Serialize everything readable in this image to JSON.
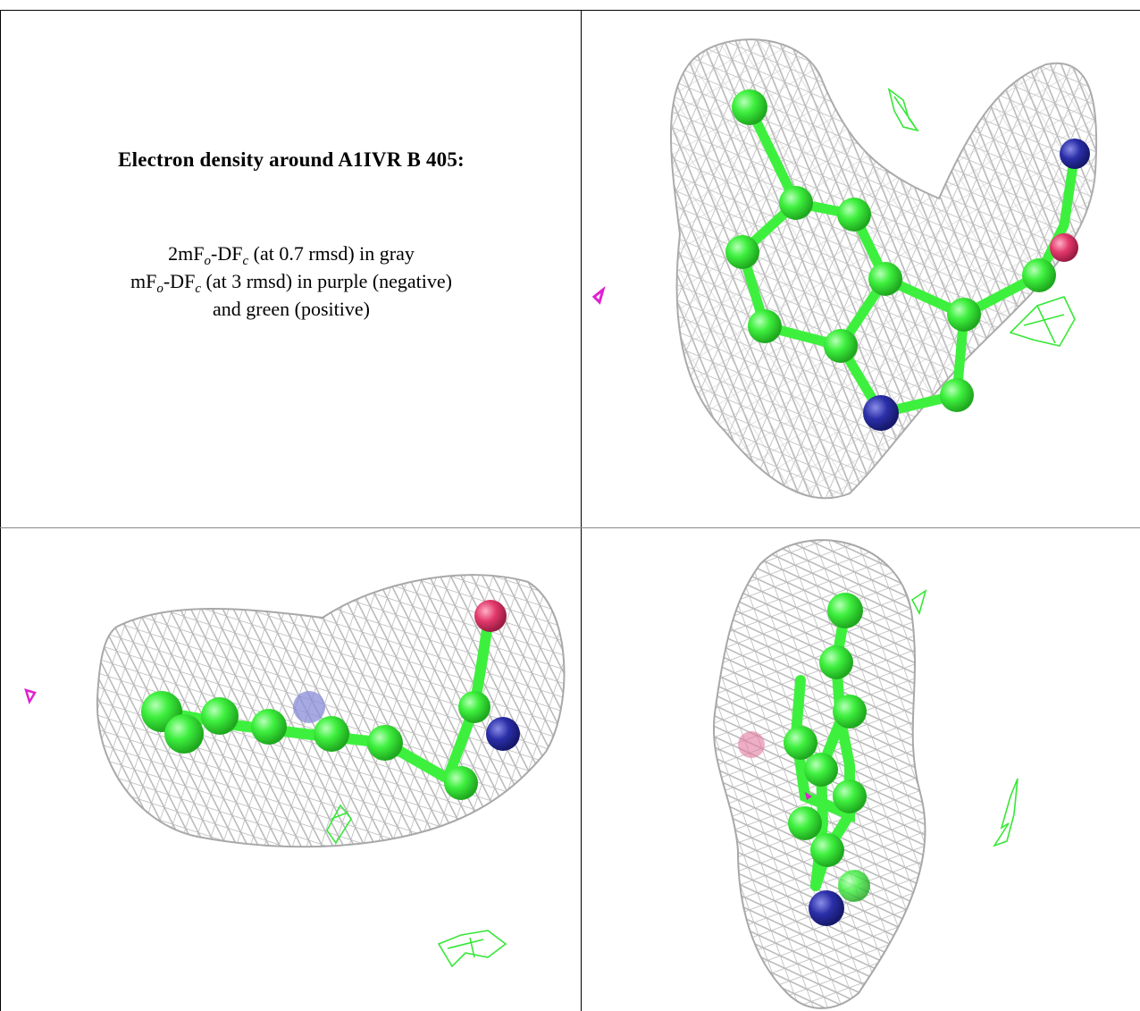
{
  "caption": {
    "title": "Electron density around A1IVR B 405:",
    "line1_pre": "2mF",
    "line1_sub_o": "o",
    "line1_mid": "-DF",
    "line1_sub_c": "c",
    "line1_post": " (at 0.7 rmsd) in gray",
    "line2_pre": "mF",
    "line2_sub_o": "o",
    "line2_mid": "-DF",
    "line2_sub_c": "c",
    "line2_post": " (at 3 rmsd) in purple (negative)",
    "line3": "and green (positive)"
  },
  "colors": {
    "mesh_gray": "#b8b8b8",
    "carbon_green": "#3ef03e",
    "nitrogen_blue": "#2b2fa8",
    "oxygen_red": "#e2386a",
    "positive_green": "#36e836",
    "negative_purple": "#e020d0",
    "border": "#000000"
  },
  "panels": [
    {
      "name": "view-top-right",
      "content": "density-mesh-ligand-view"
    },
    {
      "name": "view-bottom-left",
      "content": "density-mesh-ligand-view"
    },
    {
      "name": "view-bottom-right",
      "content": "density-mesh-ligand-view"
    }
  ]
}
